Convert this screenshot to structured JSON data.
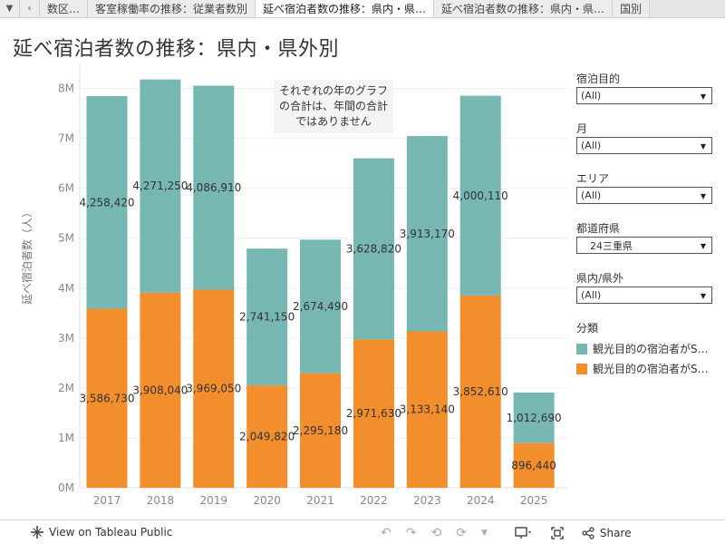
{
  "tabs": [
    {
      "label": "数区…"
    },
    {
      "label": "客室稼働率の推移：従業者数別"
    },
    {
      "label": "延べ宿泊者数の推移：県内・県…",
      "active": true
    },
    {
      "label": "延べ宿泊者数の推移：県内・県…"
    },
    {
      "label": "国別"
    }
  ],
  "title": "延べ宿泊者数の推移：県内・県外別",
  "note": "それぞれの年のグラフの合計は、年間の合計ではありません",
  "filters": [
    {
      "title": "宿泊目的",
      "value": "(All)"
    },
    {
      "title": "月",
      "value": "(All)"
    },
    {
      "title": "エリア",
      "value": "(All)"
    },
    {
      "title": "都道府県",
      "value": "24三重県"
    },
    {
      "title": "県内/県外",
      "value": "(All)"
    }
  ],
  "legend": {
    "title": "分類",
    "items": [
      {
        "label": "観光目的の宿泊者がS…",
        "color": "#76b7b2"
      },
      {
        "label": "観光目的の宿泊者がS…",
        "color": "#f28e2b"
      }
    ]
  },
  "toolbar": {
    "view_label": "View on Tableau Public",
    "share_label": "Share"
  },
  "chart_data": {
    "type": "bar",
    "stacked": true,
    "categories": [
      "2017",
      "2018",
      "2019",
      "2020",
      "2021",
      "2022",
      "2023",
      "2024",
      "2025"
    ],
    "series": [
      {
        "values": [
          3586730,
          3908040,
          3969050,
          2049820,
          2295180,
          2971630,
          3133140,
          3852610,
          896440
        ],
        "color": "#f28e2b"
      },
      {
        "values": [
          4258420,
          4271250,
          4086910,
          2741150,
          2674490,
          3628820,
          3913170,
          4000110,
          1012690
        ],
        "color": "#76b7b2"
      }
    ],
    "ylabel": "延べ宿泊者数（人）",
    "ylim": [
      0,
      8500000
    ],
    "yticks": [
      0,
      1000000,
      2000000,
      3000000,
      4000000,
      5000000,
      6000000,
      7000000,
      8000000
    ],
    "ytick_labels": [
      "0M",
      "1M",
      "2M",
      "3M",
      "4M",
      "5M",
      "6M",
      "7M",
      "8M"
    ],
    "grid": true
  }
}
